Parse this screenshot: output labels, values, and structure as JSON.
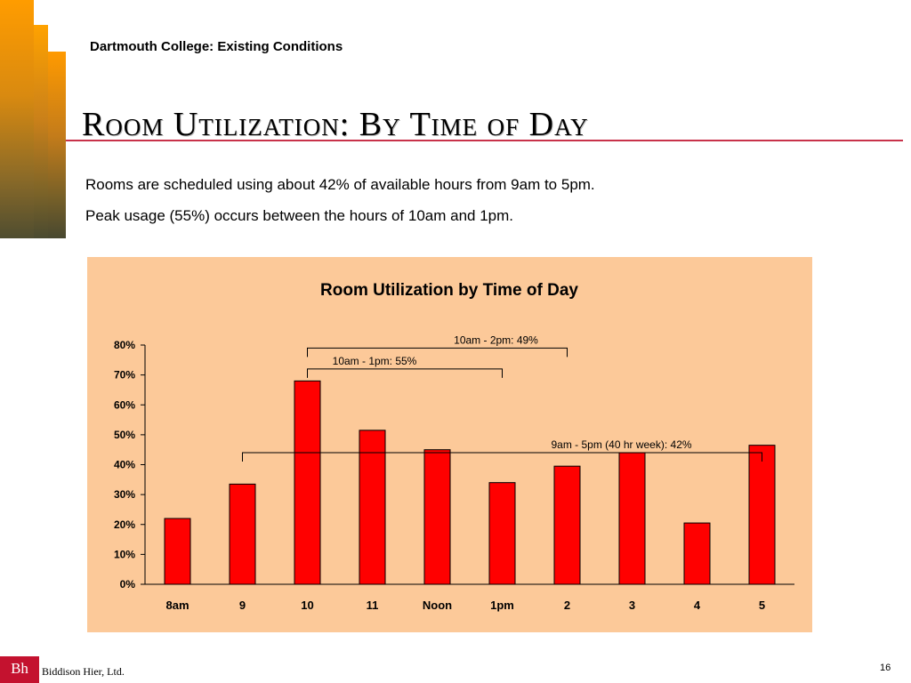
{
  "header": {
    "subtitle": "Dartmouth College:  Existing Conditions",
    "title": "Room Utilization:  By Time of Day"
  },
  "body": {
    "lines": [
      "Rooms are scheduled using about 42% of available hours from 9am to 5pm.",
      "Peak usage (55%) occurs between the hours of 10am and 1pm."
    ]
  },
  "footer": {
    "logo": "Bh",
    "firm": "Biddison Hier, Ltd.",
    "page": "16"
  },
  "colors": {
    "bar": "#ff0000",
    "panel": "#fcc999",
    "accent": "#c4122f"
  },
  "chart_data": {
    "type": "bar",
    "title": "Room Utilization by Time of Day",
    "xlabel": "",
    "ylabel": "",
    "categories": [
      "8am",
      "9",
      "10",
      "11",
      "Noon",
      "1pm",
      "2",
      "3",
      "4",
      "5"
    ],
    "values": [
      22,
      33.5,
      68,
      51.5,
      45,
      34,
      39.5,
      44,
      20.5,
      46.5
    ],
    "ylim": [
      0,
      80
    ],
    "yticks": [
      0,
      10,
      20,
      30,
      40,
      50,
      60,
      70,
      80
    ],
    "ytick_labels": [
      "0%",
      "10%",
      "20%",
      "30%",
      "40%",
      "50%",
      "60%",
      "70%",
      "80%"
    ],
    "grid": false,
    "legend": "none",
    "annotations": [
      {
        "label": "10am - 2pm:  49%",
        "from": "10",
        "to": "2",
        "level": 79
      },
      {
        "label": "10am - 1pm:  55%",
        "from": "10",
        "to": "1pm",
        "level": 72
      },
      {
        "label": "9am - 5pm (40 hr week):  42%",
        "from": "9",
        "to": "5",
        "level": 44
      }
    ]
  }
}
